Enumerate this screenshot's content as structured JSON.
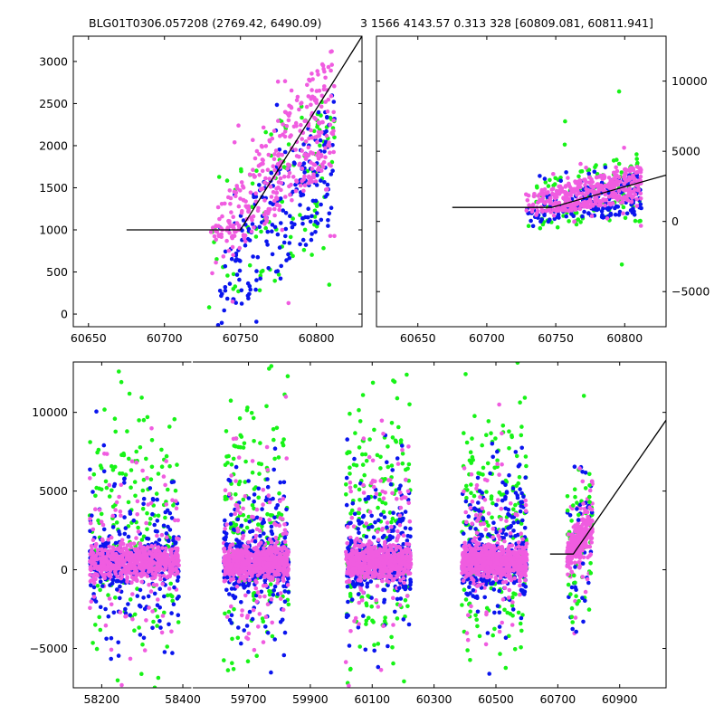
{
  "figure": {
    "title_left": "BLG01T0306.057208 (2769.42, 6490.09)",
    "title_right": "3 1566 4143.57 0.313 328 [60809.081, 60811.941]"
  },
  "colors": {
    "blue": "#0a15ee",
    "green": "#17f317",
    "pink": "#f05ce0",
    "line": "#000000"
  },
  "chart_data": [
    {
      "type": "scatter",
      "panel": "top-left",
      "xlim": [
        60640,
        60830
      ],
      "ylim": [
        -150,
        3300
      ],
      "xticks": [
        60650,
        60700,
        60750,
        60800
      ],
      "yticks": [
        0,
        500,
        1000,
        1500,
        2000,
        2500,
        3000
      ],
      "ytick_side": "left",
      "model_line": {
        "x": [
          60675,
          60750,
          60830
        ],
        "y": [
          1000,
          1000,
          3300
        ]
      },
      "clusters": [
        {
          "name": "pink",
          "x": [
            60730,
            60812
          ],
          "y_start": [
            450,
            1150
          ],
          "y_end": [
            1800,
            3250
          ],
          "n": 360
        },
        {
          "name": "blue",
          "x": [
            60735,
            60812
          ],
          "y_start": [
            -150,
            900
          ],
          "y_end": [
            1100,
            2700
          ],
          "n": 220
        },
        {
          "name": "green",
          "x": [
            60728,
            60812
          ],
          "y_start": [
            -100,
            1500
          ],
          "y_end": [
            800,
            3000
          ],
          "n": 110
        }
      ]
    },
    {
      "type": "scatter",
      "panel": "top-right",
      "xlim": [
        60620,
        60830
      ],
      "ylim": [
        -7500,
        13200
      ],
      "xticks": [
        60650,
        60700,
        60750,
        60800
      ],
      "yticks": [
        -5000,
        0,
        5000,
        10000
      ],
      "ytick_side": "right",
      "model_line": {
        "x": [
          60675,
          60747,
          60830
        ],
        "y": [
          1000,
          1000,
          3300
        ]
      },
      "clusters": [
        {
          "name": "pink",
          "x": [
            60728,
            60812
          ],
          "y_start": [
            300,
            2000
          ],
          "y_end": [
            1500,
            4000
          ],
          "n": 380
        },
        {
          "name": "blue",
          "x": [
            60728,
            60812
          ],
          "y_start": [
            -200,
            1500
          ],
          "y_end": [
            500,
            3500
          ],
          "n": 220
        },
        {
          "name": "green",
          "x": [
            60728,
            60812
          ],
          "y_start": [
            -600,
            2500
          ],
          "y_end": [
            0,
            5000
          ],
          "n": 110
        }
      ]
    },
    {
      "type": "scatter",
      "panel": "bottom",
      "ylim": [
        -7500,
        13200
      ],
      "yticks": [
        -5000,
        0,
        5000,
        10000
      ],
      "segments": [
        {
          "xlim": [
            58130,
            58420
          ],
          "xticks": [
            58200,
            58400
          ]
        },
        {
          "xlim": [
            59520,
            61050
          ],
          "xticks": [
            59700,
            59900,
            60100,
            60300,
            60500,
            60700,
            60900
          ]
        }
      ],
      "seasons": [
        {
          "x": [
            58170,
            58390
          ]
        },
        {
          "x": [
            59620,
            59830
          ]
        },
        {
          "x": [
            60015,
            60225
          ]
        },
        {
          "x": [
            60390,
            60600
          ]
        }
      ],
      "last_season": {
        "x": [
          60730,
          60812
        ]
      },
      "model_line": {
        "x": [
          60675,
          60750,
          61050
        ],
        "y": [
          1000,
          1000,
          9500
        ]
      }
    }
  ]
}
